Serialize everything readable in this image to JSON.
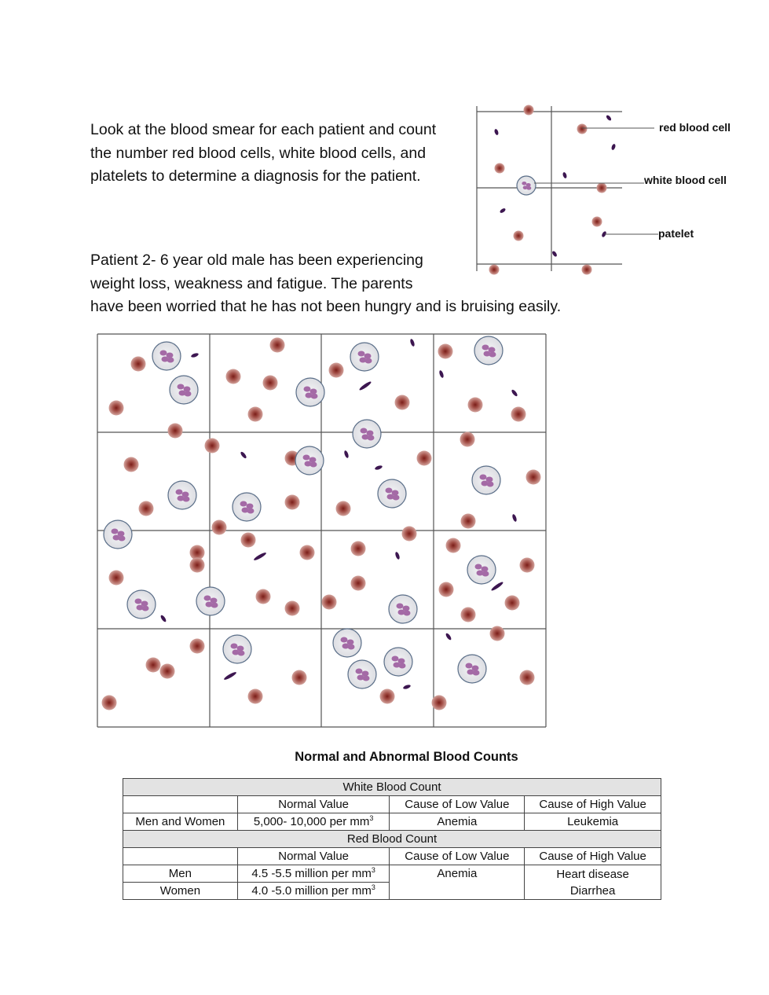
{
  "intro_text": "Look at the blood smear for each patient and count the number red blood cells, white blood cells, and platelets to determine a diagnosis for the patient.",
  "patient_text": "Patient 2- 6 year old male has been experiencing weight loss, weakness and fatigue. The parents",
  "patient_text_cont": "have been worried that he has not been hungry and is bruising easily.",
  "legend": {
    "red_blood_cell": "red blood cell",
    "white_blood_cell": "white blood cell",
    "platelet": "patelet"
  },
  "colors": {
    "rbc": "#a5524a",
    "wbc_nucleus": "#a46aa6",
    "platelet": "#3c1650",
    "grid": "#555555"
  },
  "table": {
    "title": "Normal and Abnormal Blood Counts",
    "wbc": {
      "header": "White Blood Count",
      "columns": [
        "",
        "Normal Value",
        "Cause of Low Value",
        "Cause of High Value"
      ],
      "row": {
        "group": "Men and Women",
        "normal": "5,000- 10,000 per mm",
        "sup": "3",
        "low": "Anemia",
        "high": "Leukemia"
      }
    },
    "rbc": {
      "header": "Red Blood Count",
      "columns": [
        "",
        "Normal Value",
        "Cause of Low Value",
        "Cause of High Value"
      ],
      "rows": [
        {
          "group": "Men",
          "normal": "4.5 -5.5 million per mm",
          "sup": "3"
        },
        {
          "group": "Women",
          "normal": "4.0 -5.0 million per mm",
          "sup": "3"
        }
      ],
      "low": "Anemia",
      "high": [
        "Heart disease",
        "Diarrhea"
      ]
    }
  }
}
